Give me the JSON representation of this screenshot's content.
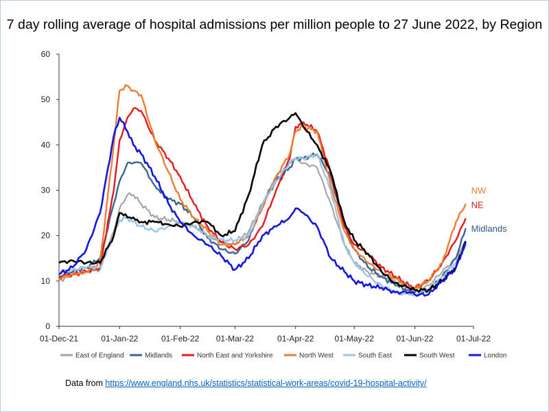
{
  "title": "7 day rolling average of hospital admissions per million people to 27 June 2022, by Region",
  "footer": {
    "prefix": "Data from ",
    "link_text": "https://www.england.nhs.uk/statistics/statistical-work-areas/covid-19-hospital-activity/"
  },
  "chart_data": {
    "type": "line",
    "title": "7 day rolling average of hospital admissions per million people to 27 June 2022, by Region",
    "xlabel": "",
    "ylabel": "",
    "ylim": [
      0,
      60
    ],
    "yticks": [
      0,
      10,
      20,
      30,
      40,
      50,
      60
    ],
    "x_start": "01-Dec-21",
    "x_end": "01-Jul-22",
    "xtick_days": [
      0,
      31,
      62,
      90,
      121,
      151,
      182,
      212
    ],
    "xtick_labels": [
      "01-Dec-21",
      "01-Jan-22",
      "01-Feb-22",
      "01-Mar-22",
      "01-Apr-22",
      "01-May-22",
      "01-Jun-22",
      "01-Jul-22"
    ],
    "grid": false,
    "legend_position": "bottom",
    "end_labels": [
      {
        "text": "NW",
        "color": "#ed7d31",
        "y": 30
      },
      {
        "text": "NE",
        "color": "#e41a1c",
        "y": 26.8
      },
      {
        "text": "Midlands",
        "color": "#2e5a88",
        "y": 21.6
      }
    ],
    "x_dates": [
      "01-Dec-21",
      "08-Dec-21",
      "15-Dec-21",
      "22-Dec-21",
      "29-Dec-21",
      "01-Jan-22",
      "05-Jan-22",
      "08-Jan-22",
      "12-Jan-22",
      "19-Jan-22",
      "26-Jan-22",
      "01-Feb-22",
      "08-Feb-22",
      "15-Feb-22",
      "22-Feb-22",
      "01-Mar-22",
      "08-Mar-22",
      "15-Mar-22",
      "22-Mar-22",
      "29-Mar-22",
      "01-Apr-22",
      "05-Apr-22",
      "12-Apr-22",
      "19-Apr-22",
      "26-Apr-22",
      "01-May-22",
      "08-May-22",
      "15-May-22",
      "22-May-22",
      "29-May-22",
      "01-Jun-22",
      "08-Jun-22",
      "15-Jun-22",
      "22-Jun-22",
      "27-Jun-22"
    ],
    "x": [
      0,
      7,
      14,
      21,
      28,
      31,
      35,
      38,
      42,
      49,
      56,
      62,
      69,
      76,
      83,
      90,
      97,
      104,
      111,
      118,
      121,
      125,
      132,
      139,
      146,
      151,
      158,
      165,
      172,
      179,
      182,
      189,
      196,
      203,
      208
    ],
    "series": [
      {
        "name": "East of England",
        "color": "#a6a6a6",
        "width": 2.2,
        "values": [
          10,
          11.5,
          12,
          12.5,
          21,
          26,
          29,
          29,
          27,
          24,
          23.5,
          23,
          22,
          20,
          18.5,
          18,
          21,
          27,
          33,
          36,
          37,
          36,
          35,
          27,
          18,
          14,
          12,
          11,
          10,
          8.5,
          8,
          9,
          12,
          15,
          18.5
        ]
      },
      {
        "name": "Midlands",
        "color": "#3c6595",
        "width": 2.4,
        "values": [
          11,
          12,
          13,
          15,
          27,
          32,
          36,
          36,
          36,
          31,
          28,
          27,
          24,
          19.5,
          17,
          16,
          19,
          27,
          32,
          35,
          37,
          37,
          38,
          33,
          22,
          17,
          13,
          11,
          9,
          8,
          7.5,
          8,
          11,
          15,
          21.6
        ]
      },
      {
        "name": "North East and Yorkshire",
        "color": "#e41a1c",
        "width": 2.4,
        "values": [
          11,
          11.5,
          12,
          13,
          30,
          41,
          46,
          48,
          47.5,
          41,
          37,
          33,
          27,
          22,
          18.5,
          17,
          18,
          22,
          30,
          37,
          44,
          45,
          43,
          34,
          22,
          18,
          16,
          13,
          11,
          9,
          8.5,
          10,
          14,
          19,
          23.8
        ]
      },
      {
        "name": "North West",
        "color": "#ed7d31",
        "width": 2.4,
        "values": [
          10.5,
          11.5,
          12,
          14,
          40,
          52,
          53,
          52,
          51,
          41,
          34,
          28,
          24,
          21,
          18,
          18,
          20,
          26,
          33,
          38,
          43,
          44,
          43,
          31,
          21,
          17,
          14,
          12,
          10.5,
          8.5,
          8.5,
          10,
          14,
          23,
          27
        ]
      },
      {
        "name": "South East",
        "color": "#9dc3e6",
        "width": 2.4,
        "values": [
          12,
          12.5,
          13,
          13,
          20,
          23.5,
          24,
          23,
          22,
          21,
          22,
          23,
          22,
          20,
          19,
          19,
          20,
          27,
          32,
          36,
          37,
          37,
          38,
          30,
          18,
          14,
          11,
          9,
          7.5,
          7,
          7,
          8,
          11,
          14,
          18
        ]
      },
      {
        "name": "South West",
        "color": "#000000",
        "width": 2.6,
        "values": [
          14,
          14.5,
          14,
          14,
          20,
          25,
          24,
          24,
          23,
          23,
          22.5,
          22,
          23,
          23,
          20,
          21,
          29,
          40,
          44,
          46,
          47,
          44,
          40,
          34,
          23,
          19,
          16,
          12,
          9.5,
          8.5,
          8,
          8,
          10,
          13,
          18.8
        ]
      },
      {
        "name": "London",
        "color": "#1515e0",
        "width": 2.6,
        "values": [
          11.5,
          13,
          17,
          25,
          42,
          46,
          43,
          40,
          38,
          33,
          27,
          23,
          20,
          18,
          15.5,
          12.5,
          15,
          20,
          22,
          24,
          26,
          25,
          22,
          15,
          12,
          10,
          9,
          8.5,
          7.5,
          7.5,
          7,
          7,
          10,
          13,
          18.5
        ]
      }
    ]
  }
}
